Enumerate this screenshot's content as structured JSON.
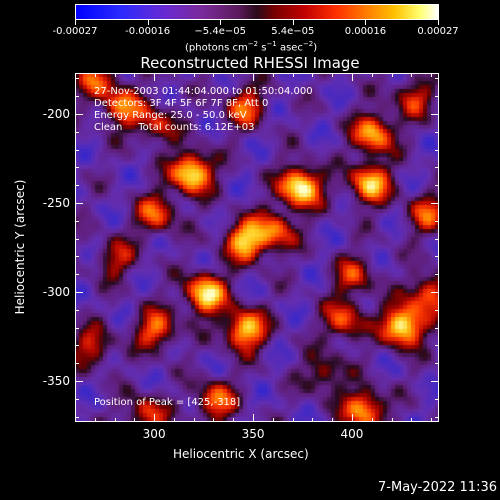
{
  "colorbar": {
    "ticks": [
      "-0.00027",
      "-0.00016",
      "−5.4e−05",
      "5.4e−05",
      "0.00016",
      "0.00027"
    ],
    "units": "(photons cm",
    "units_exp1": "−2",
    "units_mid": " s",
    "units_exp2": "−1",
    "units_mid2": " asec",
    "units_exp3": "−2",
    "units_end": ")"
  },
  "title": "Reconstructed RHESSI Image",
  "annotations": {
    "line1": "27-Nov-2003 01:44:04.000 to 01:50:04.000",
    "line2": "Detectors: 3F 4F 5F 6F 7F 8F, Att 0",
    "line3": "Energy Range: 25.0 - 50.0 keV",
    "line4": "Clean     Total counts: 6.12E+03",
    "position": "Position of Peak = [425,-318]"
  },
  "axes": {
    "xlabel": "Heliocentric X (arcsec)",
    "ylabel": "Heliocentric Y (arcsec)",
    "xticks": [
      "300",
      "350",
      "400"
    ],
    "yticks": [
      "-200",
      "-250",
      "-300",
      "-350"
    ],
    "xrange": [
      260,
      444
    ],
    "yrange": [
      -373,
      -177
    ]
  },
  "footer": {
    "timestamp": "7-May-2022 11:36"
  },
  "colors": {
    "background": "#000000",
    "foreground": "#ffffff"
  },
  "sources": [
    {
      "x": 318,
      "y": -232,
      "a": 0.95
    },
    {
      "x": 373,
      "y": -240,
      "a": 1.0
    },
    {
      "x": 408,
      "y": -238,
      "a": 0.8
    },
    {
      "x": 410,
      "y": -210,
      "a": 0.75
    },
    {
      "x": 345,
      "y": -195,
      "a": 0.55
    },
    {
      "x": 283,
      "y": -195,
      "a": 0.6
    },
    {
      "x": 270,
      "y": -180,
      "a": 0.5
    },
    {
      "x": 430,
      "y": -190,
      "a": 0.45
    },
    {
      "x": 345,
      "y": -270,
      "a": 0.8
    },
    {
      "x": 360,
      "y": -265,
      "a": 0.6
    },
    {
      "x": 300,
      "y": -255,
      "a": 0.55
    },
    {
      "x": 325,
      "y": -300,
      "a": 0.9
    },
    {
      "x": 345,
      "y": -320,
      "a": 0.85
    },
    {
      "x": 300,
      "y": -320,
      "a": 0.6
    },
    {
      "x": 425,
      "y": -318,
      "a": 1.0
    },
    {
      "x": 438,
      "y": -300,
      "a": 0.6
    },
    {
      "x": 395,
      "y": -315,
      "a": 0.55
    },
    {
      "x": 385,
      "y": -345,
      "a": 0.4
    },
    {
      "x": 405,
      "y": -365,
      "a": 0.75
    },
    {
      "x": 330,
      "y": -360,
      "a": 0.6
    },
    {
      "x": 295,
      "y": -368,
      "a": 0.5
    },
    {
      "x": 400,
      "y": -290,
      "a": 0.45
    },
    {
      "x": 280,
      "y": -280,
      "a": 0.4
    },
    {
      "x": 268,
      "y": -330,
      "a": 0.45
    },
    {
      "x": 437,
      "y": -255,
      "a": 0.5
    },
    {
      "x": 300,
      "y": -205,
      "a": 0.45
    }
  ]
}
